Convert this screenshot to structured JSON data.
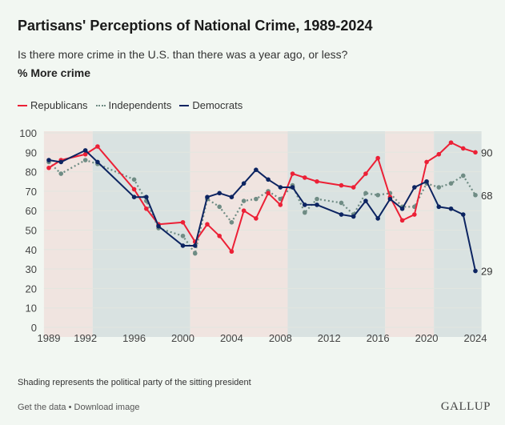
{
  "header": {
    "title": "Partisans' Perceptions of National Crime, 1989-2024",
    "subtitle": "Is there more crime in the U.S. than there was a year ago, or less?",
    "measure": "% More crime"
  },
  "footer": {
    "note": "Shading represents the political party of the sitting president",
    "links": "Get the data • Download image",
    "logo": "GALLUP"
  },
  "chart_data": {
    "type": "line",
    "title": "Partisans' Perceptions of National Crime, 1989-2024",
    "ylabel": "% More crime",
    "xlabel": "",
    "ylim": [
      0,
      100
    ],
    "yticks": [
      0,
      10,
      20,
      30,
      40,
      50,
      60,
      70,
      80,
      90,
      100
    ],
    "xticks": [
      1989,
      1992,
      1996,
      2000,
      2004,
      2008,
      2012,
      2016,
      2020,
      2024
    ],
    "legend_position": "top-left",
    "x": [
      1989,
      1990,
      1992,
      1993,
      1996,
      1997,
      1998,
      2000,
      2001,
      2002,
      2003,
      2004,
      2005,
      2006,
      2007,
      2008,
      2009,
      2010,
      2011,
      2013,
      2014,
      2015,
      2016,
      2017,
      2018,
      2019,
      2020,
      2021,
      2022,
      2023,
      2024
    ],
    "series": [
      {
        "name": "Republicans",
        "color": "#ec2036",
        "style": "solid",
        "values": [
          82,
          86,
          89,
          93,
          71,
          61,
          53,
          54,
          44,
          53,
          47,
          39,
          60,
          56,
          69,
          63,
          79,
          77,
          75,
          73,
          72,
          79,
          87,
          67,
          55,
          58,
          85,
          89,
          95,
          92,
          90
        ],
        "end_label": "90"
      },
      {
        "name": "Independents",
        "color": "#6f8c84",
        "style": "dotted",
        "values": [
          85,
          79,
          86,
          84,
          76,
          65,
          51,
          47,
          38,
          66,
          62,
          54,
          65,
          66,
          70,
          66,
          73,
          59,
          66,
          64,
          58,
          69,
          68,
          69,
          62,
          62,
          74,
          72,
          74,
          78,
          68
        ],
        "end_label": "68"
      },
      {
        "name": "Democrats",
        "color": "#0c2461",
        "style": "solid",
        "values": [
          86,
          85,
          91,
          85,
          67,
          67,
          52,
          42,
          42,
          67,
          69,
          67,
          74,
          81,
          76,
          72,
          72,
          63,
          63,
          58,
          57,
          65,
          56,
          66,
          61,
          72,
          75,
          62,
          61,
          58,
          29
        ],
        "end_label": "29"
      }
    ],
    "shading": [
      {
        "party": "Republican",
        "from": 1988.6,
        "to": 1992.6,
        "color": "#f0e4e0"
      },
      {
        "party": "Democrat",
        "from": 1992.6,
        "to": 2000.6,
        "color": "#d9e2e1"
      },
      {
        "party": "Republican",
        "from": 2000.6,
        "to": 2008.6,
        "color": "#f0e4e0"
      },
      {
        "party": "Democrat",
        "from": 2008.6,
        "to": 2016.6,
        "color": "#d9e2e1"
      },
      {
        "party": "Republican",
        "from": 2016.6,
        "to": 2020.6,
        "color": "#f0e4e0"
      },
      {
        "party": "Democrat",
        "from": 2020.6,
        "to": 2024.5,
        "color": "#d9e2e1"
      }
    ]
  }
}
